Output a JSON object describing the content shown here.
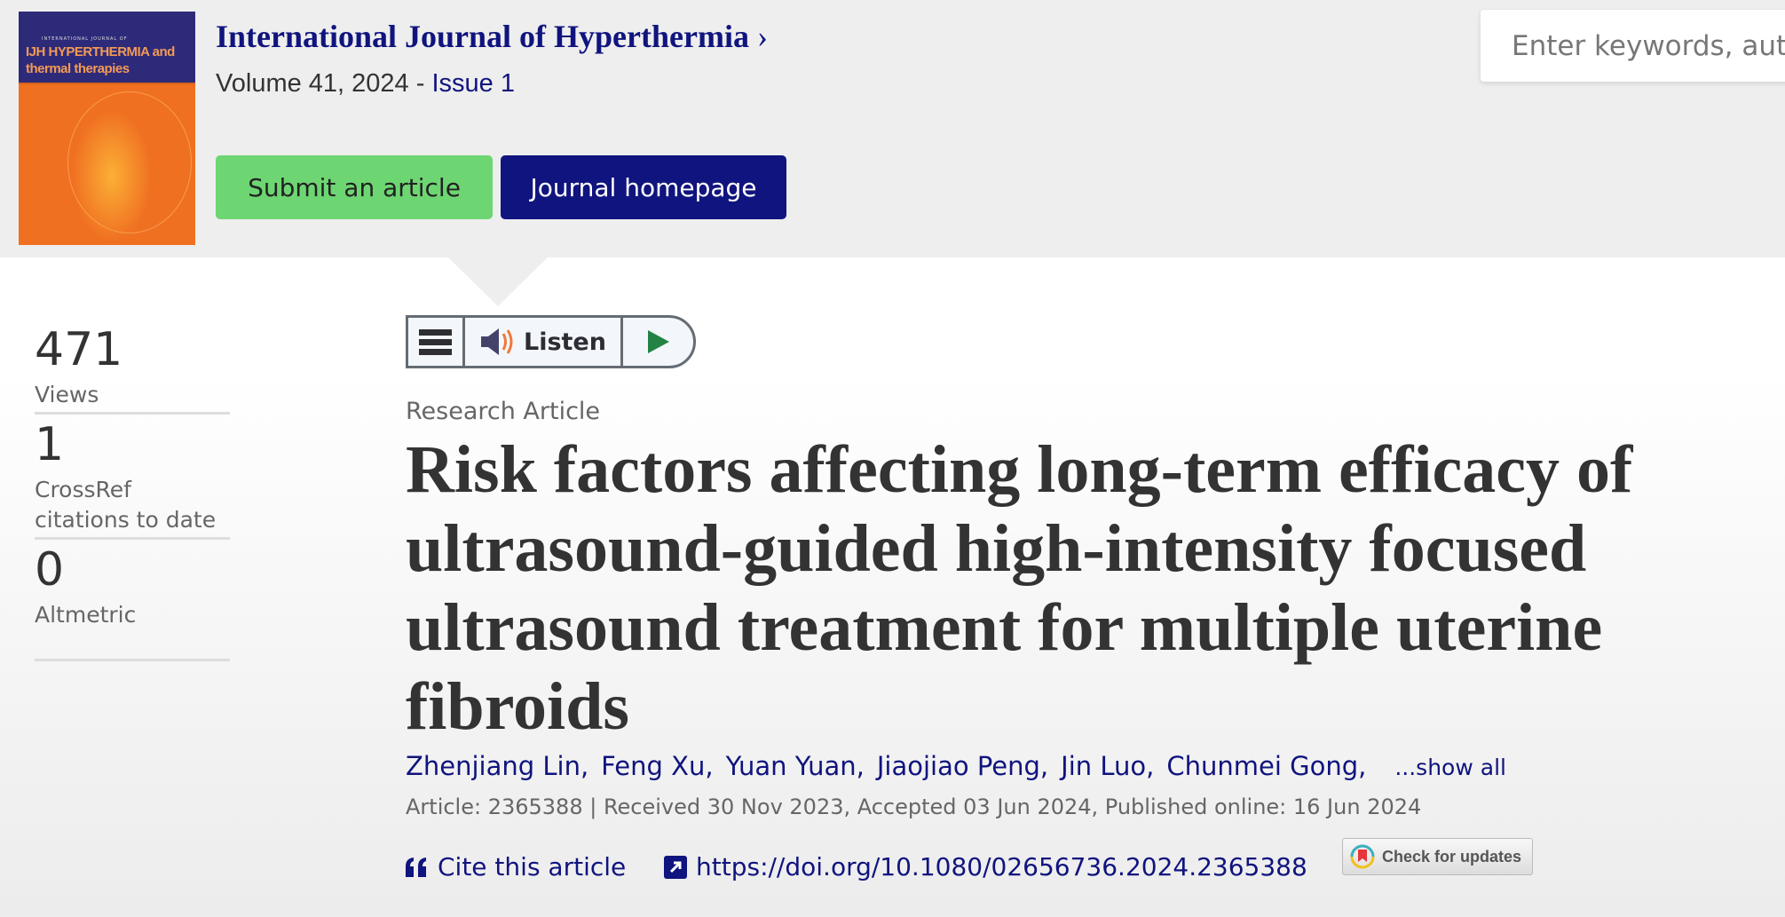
{
  "journal": {
    "cover_logo_text": "IJH HYPERTHERMIA and thermal therapies",
    "cover_small": "INTERNATIONAL JOURNAL OF",
    "cover_big": "HYPERTHERMIA",
    "cover_sub": "and thermal therapies",
    "cover_abbr": "IJH",
    "title": "International Journal of Hyperthermia",
    "title_chevron": "›",
    "volume": "Volume 41, 2024 - ",
    "issue": "Issue 1",
    "submit_label": "Submit an article",
    "homepage_label": "Journal homepage",
    "colors": {
      "brand": "#10147e",
      "submit": "#6dd672",
      "cover": "#f07022"
    }
  },
  "search": {
    "placeholder": "Enter keywords, auth"
  },
  "stats": [
    {
      "value": "471",
      "label": "Views"
    },
    {
      "value": "1",
      "label": "CrossRef citations to date"
    },
    {
      "value": "0",
      "label": "Altmetric"
    }
  ],
  "listen": {
    "label": "Listen",
    "icons": [
      "menu-icon",
      "speaker-icon",
      "play-icon"
    ]
  },
  "article": {
    "type": "Research Article",
    "title": "Risk factors affecting long-term efficacy of ultrasound-guided high-intensity focused ultrasound treatment for multiple uterine fibroids",
    "authors": [
      "Zhenjiang Lin,",
      "Feng Xu,",
      "Yuan Yuan,",
      "Jiaojiao Peng,",
      "Jin Luo,",
      "Chunmei Gong,"
    ],
    "show_all": "...show all",
    "meta": "Article: 2365388 | Received 30 Nov 2023, Accepted 03 Jun 2024, Published online: 16 Jun 2024",
    "cite_label": "Cite this article",
    "doi": "https://doi.org/10.1080/02656736.2024.2365388",
    "check_updates": "Check for updates"
  }
}
